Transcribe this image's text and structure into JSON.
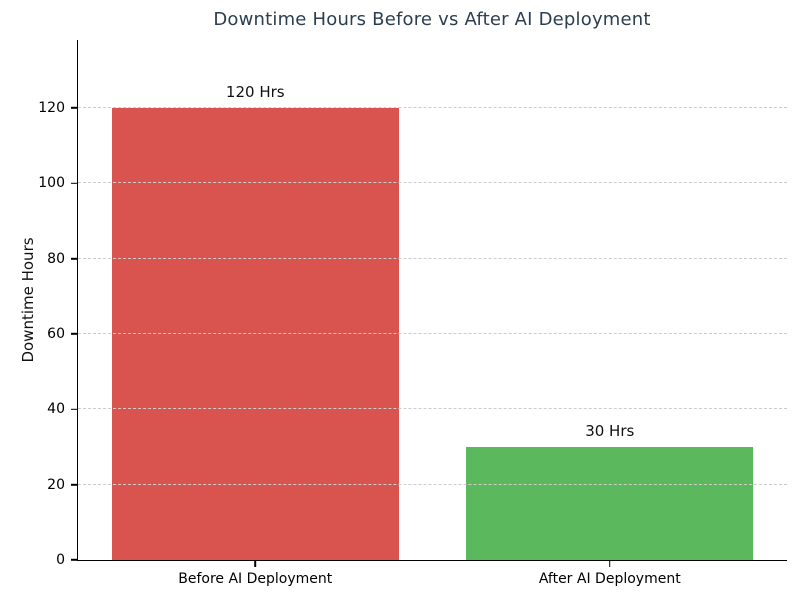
{
  "chart_data": {
    "type": "bar",
    "title": "Downtime Hours Before vs After AI Deployment",
    "xlabel": "",
    "ylabel": "Downtime Hours",
    "categories": [
      "Before AI Deployment",
      "After AI Deployment"
    ],
    "values": [
      120,
      30
    ],
    "bar_value_labels": [
      "120 Hrs",
      "30 Hrs"
    ],
    "bar_colors": [
      "#d9534f",
      "#5cb85c"
    ],
    "yticks": [
      0,
      20,
      40,
      60,
      80,
      100,
      120
    ],
    "ylim": [
      0,
      138
    ],
    "grid": {
      "axis": "y",
      "style": "dashed",
      "color": "#cccccc",
      "above_bars": true
    },
    "legend": "none",
    "colors": {
      "title": "#2c3e50",
      "spine": "#000000",
      "tick_labels": "#000000",
      "bar_value_labels": "#111111",
      "background": "#ffffff"
    }
  }
}
